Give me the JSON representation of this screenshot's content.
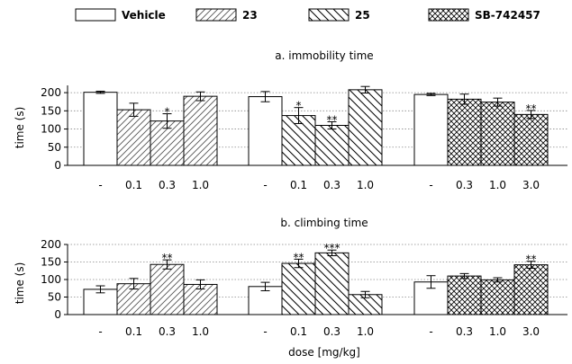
{
  "legend": [
    {
      "label": "Vehicle",
      "pattern": "blank"
    },
    {
      "label": "23",
      "pattern": "diag-right"
    },
    {
      "label": "25",
      "pattern": "diag-left"
    },
    {
      "label": "SB-742457",
      "pattern": "cross"
    }
  ],
  "xlabel": "dose [mg/kg]",
  "chart_data": [
    {
      "type": "bar",
      "title": "a. immobility time",
      "ylabel": "time (s)",
      "ylim": [
        0,
        220
      ],
      "yticks": [
        "0",
        "50",
        "100",
        "150",
        "200"
      ],
      "grid": "horizontal dotted",
      "groups": [
        {
          "compound": "23",
          "bars": [
            {
              "dose": "-",
              "pattern": "blank",
              "value": 201,
              "err": 3,
              "sig": ""
            },
            {
              "dose": "0.1",
              "pattern": "diag-right",
              "value": 153,
              "err": 18,
              "sig": ""
            },
            {
              "dose": "0.3",
              "pattern": "diag-right",
              "value": 122,
              "err": 20,
              "sig": "*"
            },
            {
              "dose": "1.0",
              "pattern": "diag-right",
              "value": 190,
              "err": 12,
              "sig": ""
            }
          ]
        },
        {
          "compound": "25",
          "bars": [
            {
              "dose": "-",
              "pattern": "blank",
              "value": 189,
              "err": 14,
              "sig": ""
            },
            {
              "dose": "0.1",
              "pattern": "diag-left",
              "value": 137,
              "err": 22,
              "sig": "*"
            },
            {
              "dose": "0.3",
              "pattern": "diag-left",
              "value": 110,
              "err": 10,
              "sig": "**"
            },
            {
              "dose": "1.0",
              "pattern": "diag-left",
              "value": 208,
              "err": 9,
              "sig": ""
            }
          ]
        },
        {
          "compound": "SB-742457",
          "bars": [
            {
              "dose": "-",
              "pattern": "blank",
              "value": 195,
              "err": 3,
              "sig": ""
            },
            {
              "dose": "0.3",
              "pattern": "cross",
              "value": 182,
              "err": 14,
              "sig": ""
            },
            {
              "dose": "1.0",
              "pattern": "cross",
              "value": 174,
              "err": 11,
              "sig": ""
            },
            {
              "dose": "3.0",
              "pattern": "cross",
              "value": 140,
              "err": 11,
              "sig": "**"
            }
          ]
        }
      ]
    },
    {
      "type": "bar",
      "title": "b. climbing time",
      "ylabel": "time (s)",
      "ylim": [
        0,
        200
      ],
      "yticks": [
        "0",
        "50",
        "100",
        "150",
        "200"
      ],
      "grid": "horizontal dotted",
      "groups": [
        {
          "compound": "23",
          "bars": [
            {
              "dose": "-",
              "pattern": "blank",
              "value": 72,
              "err": 10,
              "sig": ""
            },
            {
              "dose": "0.1",
              "pattern": "diag-right",
              "value": 88,
              "err": 15,
              "sig": ""
            },
            {
              "dose": "0.3",
              "pattern": "diag-right",
              "value": 143,
              "err": 13,
              "sig": "**"
            },
            {
              "dose": "1.0",
              "pattern": "diag-right",
              "value": 86,
              "err": 13,
              "sig": ""
            }
          ]
        },
        {
          "compound": "25",
          "bars": [
            {
              "dose": "-",
              "pattern": "blank",
              "value": 80,
              "err": 12,
              "sig": ""
            },
            {
              "dose": "0.1",
              "pattern": "diag-left",
              "value": 146,
              "err": 12,
              "sig": "**"
            },
            {
              "dose": "0.3",
              "pattern": "diag-left",
              "value": 176,
              "err": 8,
              "sig": "***"
            },
            {
              "dose": "1.0",
              "pattern": "diag-left",
              "value": 57,
              "err": 9,
              "sig": ""
            }
          ]
        },
        {
          "compound": "SB-742457",
          "bars": [
            {
              "dose": "-",
              "pattern": "blank",
              "value": 93,
              "err": 18,
              "sig": ""
            },
            {
              "dose": "0.3",
              "pattern": "cross",
              "value": 110,
              "err": 7,
              "sig": ""
            },
            {
              "dose": "1.0",
              "pattern": "cross",
              "value": 99,
              "err": 6,
              "sig": ""
            },
            {
              "dose": "3.0",
              "pattern": "cross",
              "value": 142,
              "err": 10,
              "sig": "**"
            }
          ]
        }
      ]
    }
  ]
}
